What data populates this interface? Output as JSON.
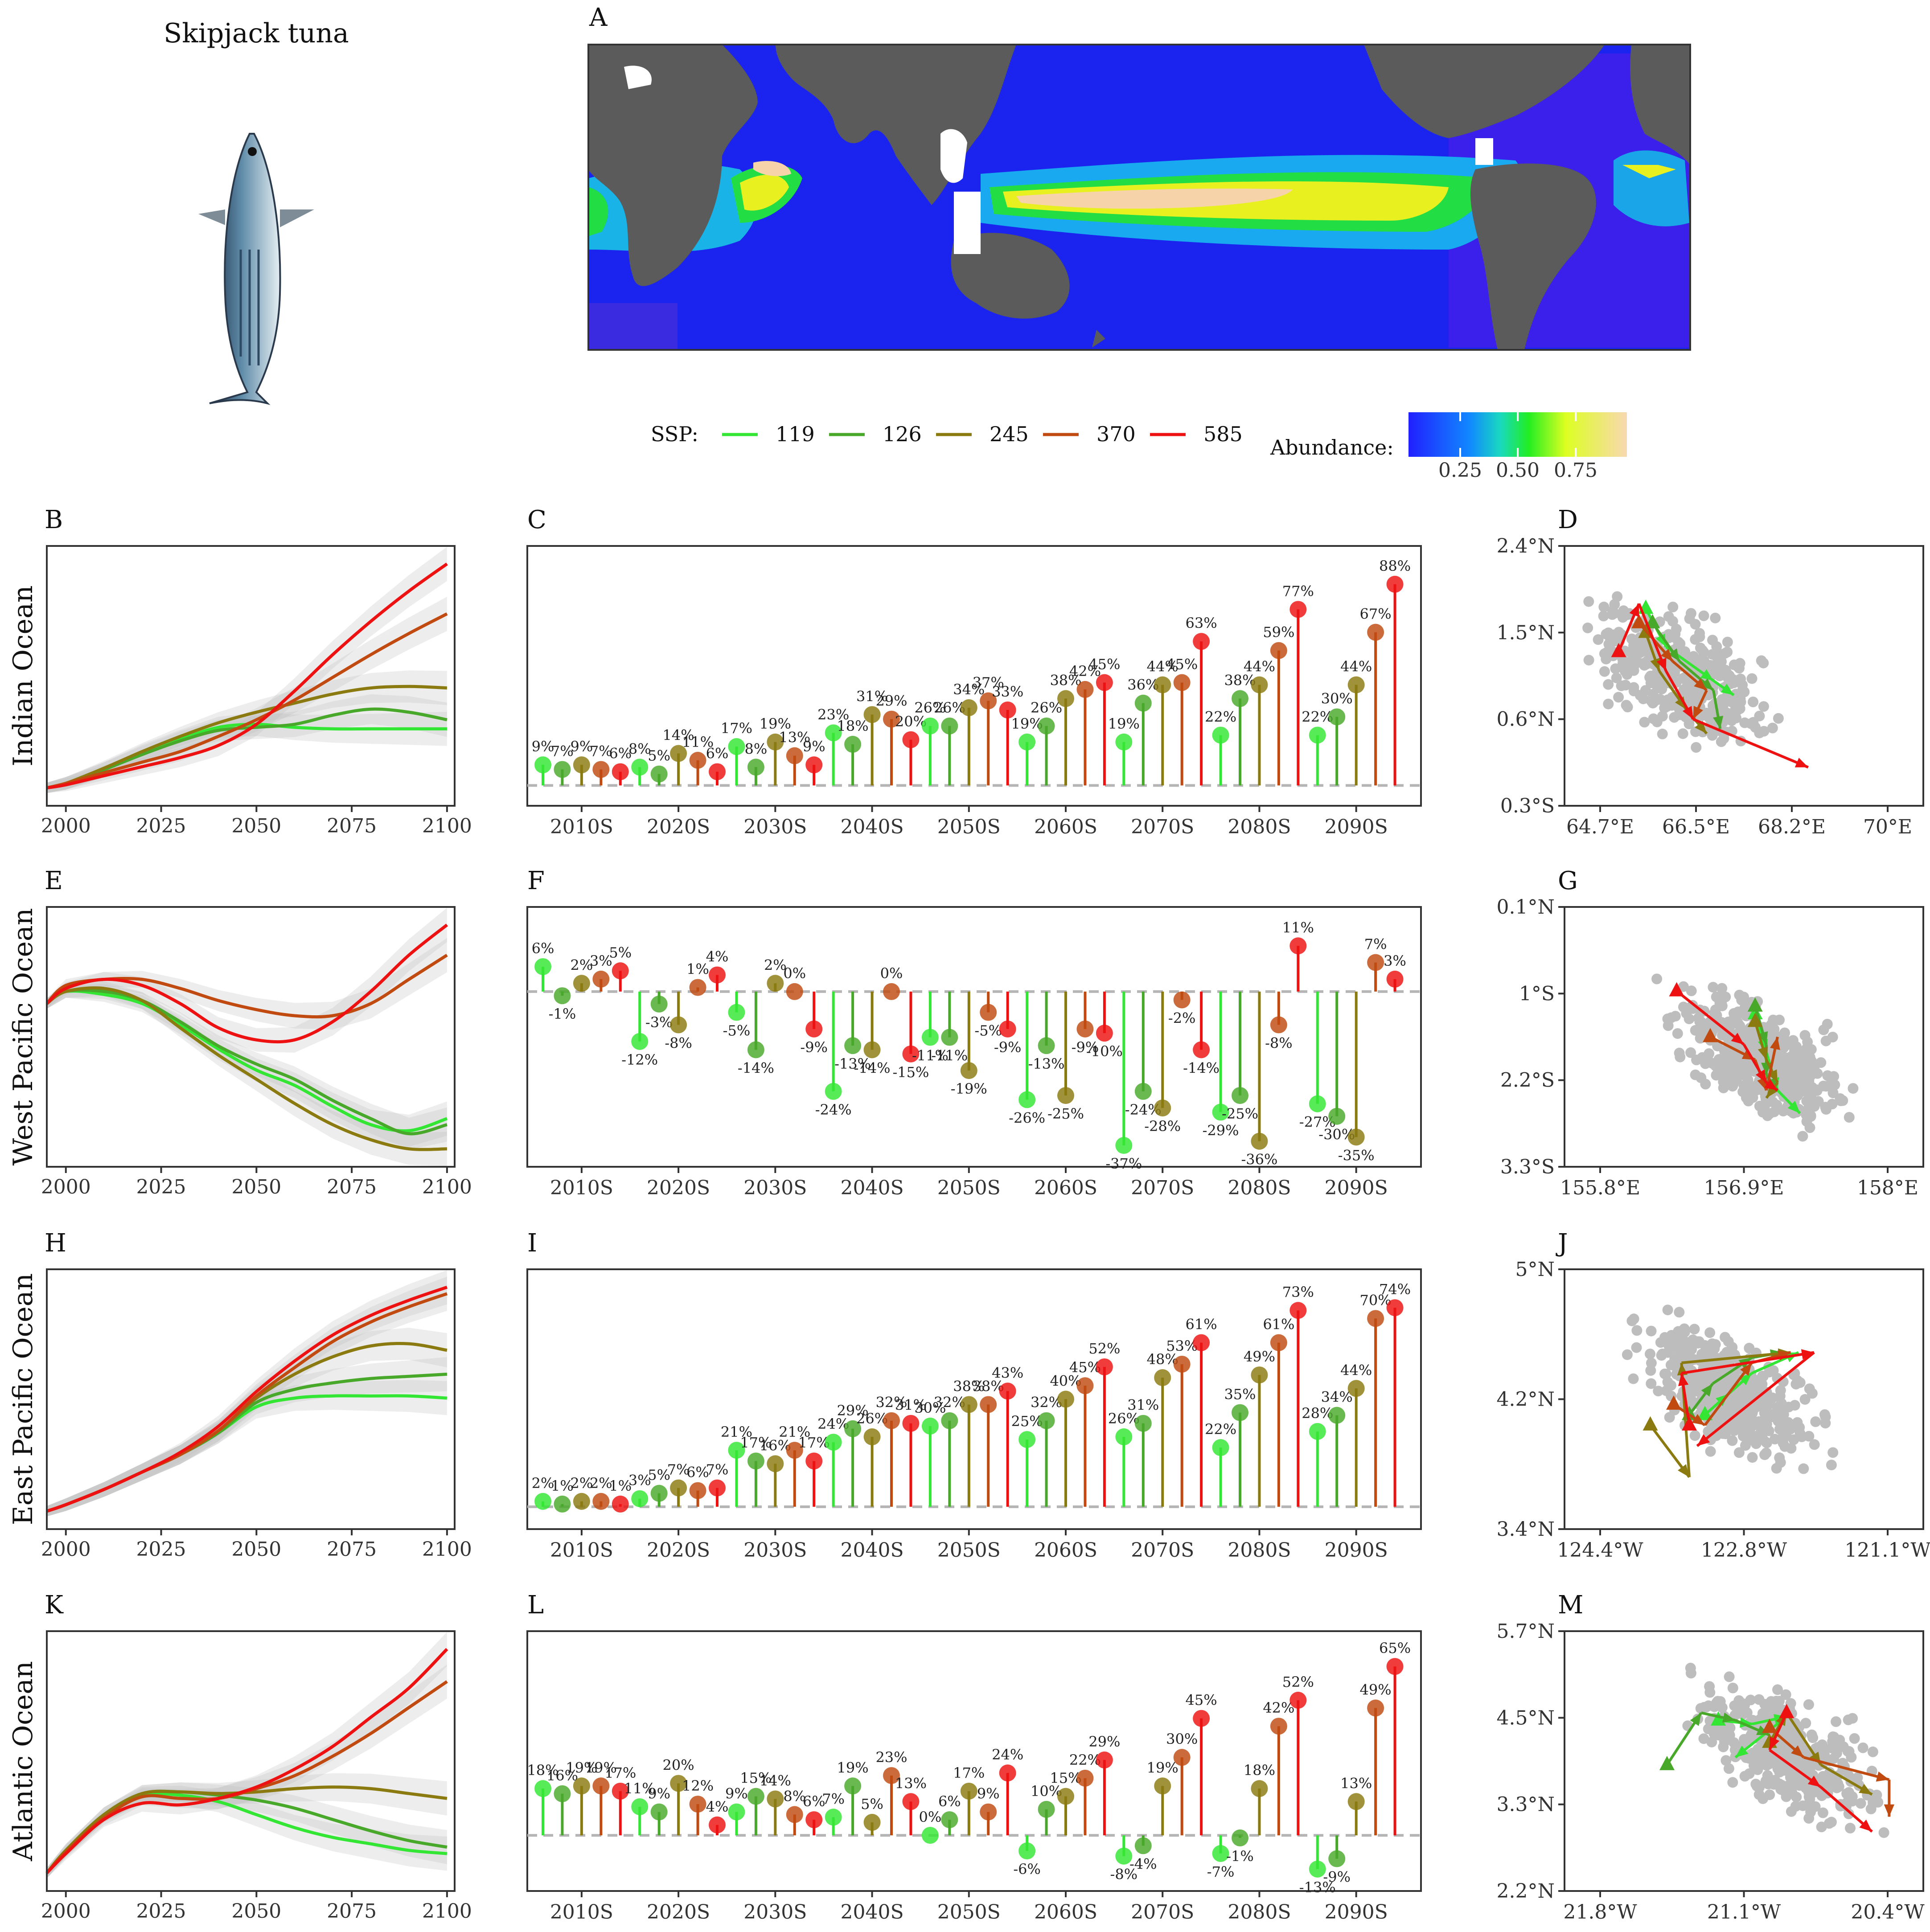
{
  "title": "Skipjack tuna",
  "species_icon": "skipjack-tuna-fish-icon",
  "map": {
    "label": "A",
    "colorbar_title": "Abundance:",
    "colorbar_ticks": [
      "0.25",
      "0.50",
      "0.75"
    ]
  },
  "legend": {
    "label": "SSP:",
    "items": [
      {
        "name": "119",
        "color": "#33e633"
      },
      {
        "name": "126",
        "color": "#48a82a"
      },
      {
        "name": "245",
        "color": "#8a7a10"
      },
      {
        "name": "370",
        "color": "#c04a10"
      },
      {
        "name": "585",
        "color": "#ee1111"
      }
    ]
  },
  "x_decade_labels": [
    "2010S",
    "2020S",
    "2030S",
    "2040S",
    "2050S",
    "2060S",
    "2070S",
    "2080S",
    "2090S"
  ],
  "chart_data": [
    {
      "type": "line",
      "panel": "B",
      "ocean": "Indian Ocean",
      "x": [
        1995,
        2000,
        2010,
        2020,
        2030,
        2040,
        2050,
        2060,
        2070,
        2080,
        2090,
        2100
      ],
      "x_ticks": [
        "2000",
        "2025",
        "2050",
        "2075",
        "2100"
      ],
      "series": [
        {
          "name": "119",
          "values": [
            0.1,
            0.13,
            0.22,
            0.33,
            0.42,
            0.5,
            0.52,
            0.5,
            0.49,
            0.49,
            0.49,
            0.49
          ]
        },
        {
          "name": "126",
          "values": [
            0.1,
            0.13,
            0.22,
            0.32,
            0.41,
            0.48,
            0.5,
            0.52,
            0.58,
            0.62,
            0.6,
            0.55
          ]
        },
        {
          "name": "245",
          "values": [
            0.1,
            0.13,
            0.23,
            0.34,
            0.44,
            0.53,
            0.6,
            0.66,
            0.72,
            0.76,
            0.77,
            0.76
          ]
        },
        {
          "name": "370",
          "values": [
            0.1,
            0.13,
            0.2,
            0.27,
            0.34,
            0.44,
            0.55,
            0.68,
            0.83,
            0.98,
            1.12,
            1.25
          ]
        },
        {
          "name": "585",
          "values": [
            0.1,
            0.12,
            0.18,
            0.24,
            0.3,
            0.38,
            0.52,
            0.74,
            0.98,
            1.2,
            1.4,
            1.58
          ]
        }
      ]
    },
    {
      "type": "lollipop",
      "panel": "C",
      "ylim": [
        -5,
        95
      ],
      "values": [
        9,
        7,
        9,
        7,
        6,
        8,
        5,
        14,
        11,
        6,
        17,
        8,
        19,
        13,
        9,
        23,
        18,
        31,
        29,
        20,
        26,
        26,
        34,
        37,
        33,
        19,
        26,
        38,
        42,
        45,
        19,
        36,
        44,
        45,
        63,
        22,
        38,
        44,
        59,
        77,
        22,
        30,
        44,
        67,
        88
      ]
    },
    {
      "type": "scatter",
      "panel": "D",
      "xlabels": [
        "64.7°E",
        "66.5°E",
        "68.2°E",
        "70°E"
      ],
      "ylabels": [
        "2.4°N",
        "1.5°N",
        "0.6°N",
        "0.3°S"
      ],
      "xlim": [
        64.7,
        70.0
      ],
      "ylim": [
        -0.3,
        2.4
      ],
      "centroids": [
        {
          "name": "119",
          "path": [
            [
              65.9,
              1.75
            ],
            [
              66.2,
              1.35
            ],
            [
              66.9,
              1.0
            ],
            [
              67.2,
              0.85
            ]
          ]
        },
        {
          "name": "126",
          "path": [
            [
              66.0,
              1.6
            ],
            [
              66.4,
              1.2
            ],
            [
              66.9,
              0.9
            ],
            [
              67.0,
              0.5
            ]
          ]
        },
        {
          "name": "245",
          "path": [
            [
              65.9,
              1.5
            ],
            [
              66.1,
              1.1
            ],
            [
              66.5,
              0.7
            ],
            [
              66.8,
              0.45
            ]
          ]
        },
        {
          "name": "370",
          "path": [
            [
              65.8,
              1.6
            ],
            [
              66.3,
              1.2
            ],
            [
              66.8,
              0.9
            ],
            [
              66.6,
              0.6
            ]
          ]
        },
        {
          "name": "585",
          "path": [
            [
              65.5,
              1.3
            ],
            [
              65.8,
              1.8
            ],
            [
              66.2,
              1.1
            ],
            [
              66.6,
              0.6
            ],
            [
              68.3,
              0.1
            ]
          ]
        }
      ]
    },
    {
      "type": "line",
      "panel": "E",
      "ocean": "West Pacific Ocean",
      "x": [
        1995,
        2000,
        2010,
        2020,
        2030,
        2040,
        2050,
        2060,
        2070,
        2080,
        2090,
        2100
      ],
      "x_ticks": [
        "2000",
        "2025",
        "2050",
        "2075",
        "2100"
      ],
      "series": [
        {
          "name": "119",
          "values": [
            0.02,
            0.06,
            0.05,
            0.02,
            -0.05,
            -0.13,
            -0.2,
            -0.25,
            -0.32,
            -0.38,
            -0.4,
            -0.36
          ]
        },
        {
          "name": "126",
          "values": [
            0.02,
            0.06,
            0.06,
            0.03,
            -0.04,
            -0.12,
            -0.18,
            -0.23,
            -0.3,
            -0.36,
            -0.41,
            -0.38
          ]
        },
        {
          "name": "245",
          "values": [
            0.02,
            0.06,
            0.07,
            0.03,
            -0.06,
            -0.15,
            -0.23,
            -0.31,
            -0.38,
            -0.43,
            -0.46,
            -0.46
          ]
        },
        {
          "name": "370",
          "values": [
            0.02,
            0.08,
            0.1,
            0.1,
            0.07,
            0.03,
            0.0,
            -0.02,
            -0.02,
            0.02,
            0.1,
            0.18
          ]
        },
        {
          "name": "585",
          "values": [
            0.02,
            0.07,
            0.1,
            0.08,
            0.02,
            -0.06,
            -0.1,
            -0.1,
            -0.04,
            0.06,
            0.18,
            0.28
          ]
        }
      ]
    },
    {
      "type": "lollipop",
      "panel": "F",
      "ylim": [
        -40,
        15
      ],
      "values": [
        6,
        -1,
        2,
        3,
        5,
        -12,
        -3,
        -8,
        1,
        4,
        -5,
        -14,
        2,
        0,
        -9,
        -24,
        -13,
        -14,
        0,
        -15,
        -11,
        -11,
        -19,
        -5,
        -9,
        -26,
        -13,
        -25,
        -9,
        -10,
        -37,
        -24,
        -28,
        -2,
        -14,
        -29,
        -25,
        -36,
        -8,
        11,
        -27,
        -30,
        -35,
        7,
        3
      ]
    },
    {
      "type": "scatter",
      "panel": "G",
      "xlabels": [
        "155.8°E",
        "156.9°E",
        "158°E"
      ],
      "ylabels": [
        "0.1°N",
        "1°S",
        "2.2°S",
        "3.3°S"
      ],
      "xlim": [
        155.8,
        159.0
      ],
      "ylim": [
        -3.3,
        0.1
      ],
      "centroids": [
        {
          "name": "119",
          "path": [
            [
              157.5,
              -1.3
            ],
            [
              157.6,
              -1.8
            ],
            [
              157.7,
              -2.3
            ],
            [
              157.9,
              -2.6
            ]
          ]
        },
        {
          "name": "126",
          "path": [
            [
              157.5,
              -1.2
            ],
            [
              157.6,
              -1.7
            ],
            [
              157.6,
              -2.1
            ],
            [
              157.7,
              -2.3
            ]
          ]
        },
        {
          "name": "245",
          "path": [
            [
              157.5,
              -1.4
            ],
            [
              157.6,
              -1.9
            ],
            [
              157.7,
              -2.2
            ],
            [
              157.6,
              -2.4
            ]
          ]
        },
        {
          "name": "370",
          "path": [
            [
              157.1,
              -1.6
            ],
            [
              157.5,
              -1.9
            ],
            [
              157.6,
              -2.3
            ],
            [
              157.7,
              -1.6
            ]
          ]
        },
        {
          "name": "585",
          "path": [
            [
              156.8,
              -1.0
            ],
            [
              157.4,
              -1.7
            ],
            [
              157.6,
              -2.2
            ],
            [
              157.7,
              -2.3
            ]
          ]
        }
      ]
    },
    {
      "type": "line",
      "panel": "H",
      "ocean": "East Pacific Ocean",
      "x": [
        1995,
        2000,
        2010,
        2020,
        2030,
        2040,
        2050,
        2060,
        2070,
        2080,
        2090,
        2100
      ],
      "x_ticks": [
        "2000",
        "2025",
        "2050",
        "2075",
        "2100"
      ],
      "series": [
        {
          "name": "119",
          "values": [
            0.02,
            0.05,
            0.12,
            0.2,
            0.28,
            0.38,
            0.5,
            0.54,
            0.55,
            0.55,
            0.55,
            0.54
          ]
        },
        {
          "name": "126",
          "values": [
            0.02,
            0.05,
            0.12,
            0.2,
            0.28,
            0.38,
            0.52,
            0.58,
            0.61,
            0.63,
            0.64,
            0.65
          ]
        },
        {
          "name": "245",
          "values": [
            0.02,
            0.05,
            0.12,
            0.2,
            0.28,
            0.39,
            0.54,
            0.65,
            0.73,
            0.78,
            0.79,
            0.76
          ]
        },
        {
          "name": "370",
          "values": [
            0.02,
            0.05,
            0.12,
            0.2,
            0.28,
            0.39,
            0.55,
            0.68,
            0.8,
            0.89,
            0.96,
            1.02
          ]
        },
        {
          "name": "585",
          "values": [
            0.02,
            0.05,
            0.12,
            0.2,
            0.29,
            0.41,
            0.57,
            0.71,
            0.83,
            0.92,
            0.99,
            1.05
          ]
        }
      ]
    },
    {
      "type": "lollipop",
      "panel": "I",
      "ylim": [
        -5,
        80
      ],
      "values": [
        2,
        1,
        2,
        2,
        1,
        3,
        5,
        7,
        6,
        7,
        21,
        17,
        16,
        21,
        17,
        24,
        29,
        26,
        32,
        31,
        30,
        32,
        38,
        38,
        43,
        25,
        32,
        40,
        45,
        52,
        26,
        31,
        48,
        53,
        61,
        22,
        35,
        49,
        61,
        73,
        28,
        34,
        44,
        70,
        74
      ]
    },
    {
      "type": "scatter",
      "panel": "J",
      "xlabels": [
        "124.4°W",
        "122.8°W",
        "121.1°W"
      ],
      "ylabels": [
        "5°N",
        "4.2°N",
        "3.4°N"
      ],
      "xlim": [
        -124.4,
        -119.8
      ],
      "ylim": [
        2.5,
        5.0
      ],
      "centroids": [
        {
          "name": "119",
          "path": [
            [
              -122.6,
              3.6
            ],
            [
              -122.3,
              3.8
            ],
            [
              -122.0,
              4.0
            ],
            [
              -121.4,
              4.2
            ]
          ]
        },
        {
          "name": "126",
          "path": [
            [
              -122.8,
              3.6
            ],
            [
              -122.5,
              3.9
            ],
            [
              -122.0,
              4.15
            ],
            [
              -121.6,
              4.2
            ]
          ]
        },
        {
          "name": "245",
          "path": [
            [
              -123.3,
              3.5
            ],
            [
              -122.8,
              3.0
            ],
            [
              -122.9,
              4.1
            ],
            [
              -121.5,
              4.2
            ]
          ]
        },
        {
          "name": "370",
          "path": [
            [
              -123.0,
              3.7
            ],
            [
              -122.6,
              3.5
            ],
            [
              -122.0,
              4.1
            ],
            [
              -121.5,
              4.2
            ]
          ]
        },
        {
          "name": "585",
          "path": [
            [
              -122.8,
              3.5
            ],
            [
              -122.9,
              4.0
            ],
            [
              -121.2,
              4.2
            ],
            [
              -122.7,
              3.3
            ]
          ]
        }
      ]
    },
    {
      "type": "line",
      "panel": "K",
      "ocean": "Atlantic Ocean",
      "x": [
        1995,
        2000,
        2010,
        2020,
        2030,
        2040,
        2050,
        2060,
        2070,
        2080,
        2090,
        2100
      ],
      "x_ticks": [
        "2000",
        "2025",
        "2050",
        "2075",
        "2100"
      ],
      "series": [
        {
          "name": "119",
          "values": [
            0.0,
            0.14,
            0.36,
            0.48,
            0.48,
            0.44,
            0.36,
            0.28,
            0.22,
            0.18,
            0.14,
            0.12
          ]
        },
        {
          "name": "126",
          "values": [
            0.0,
            0.14,
            0.36,
            0.49,
            0.5,
            0.48,
            0.45,
            0.4,
            0.33,
            0.26,
            0.2,
            0.16
          ]
        },
        {
          "name": "245",
          "values": [
            0.0,
            0.14,
            0.36,
            0.49,
            0.5,
            0.49,
            0.5,
            0.52,
            0.53,
            0.52,
            0.49,
            0.46
          ]
        },
        {
          "name": "370",
          "values": [
            0.0,
            0.13,
            0.34,
            0.47,
            0.46,
            0.46,
            0.52,
            0.6,
            0.72,
            0.86,
            1.02,
            1.18
          ]
        },
        {
          "name": "585",
          "values": [
            0.0,
            0.12,
            0.33,
            0.43,
            0.42,
            0.46,
            0.53,
            0.64,
            0.78,
            0.96,
            1.14,
            1.38
          ]
        }
      ]
    },
    {
      "type": "lollipop",
      "panel": "L",
      "ylim": [
        -18,
        70
      ],
      "values": [
        18,
        16,
        19,
        19,
        17,
        11,
        9,
        20,
        12,
        4,
        9,
        15,
        14,
        8,
        6,
        7,
        19,
        5,
        23,
        13,
        0,
        6,
        17,
        9,
        24,
        -6,
        10,
        15,
        22,
        29,
        -8,
        -4,
        19,
        30,
        45,
        -7,
        -1,
        18,
        42,
        52,
        -13,
        -9,
        13,
        49,
        65
      ]
    },
    {
      "type": "scatter",
      "panel": "M",
      "xlabels": [
        "21.8°W",
        "21.1°W",
        "20.4°W"
      ],
      "ylabels": [
        "5.7°N",
        "4.5°N",
        "3.3°N",
        "2.2°N"
      ],
      "xlim": [
        -21.8,
        -19.7
      ],
      "ylim": [
        2.2,
        5.7
      ],
      "centroids": [
        {
          "name": "119",
          "path": [
            [
              -20.9,
              4.5
            ],
            [
              -20.7,
              4.45
            ],
            [
              -20.5,
              4.55
            ],
            [
              -20.8,
              4.0
            ]
          ]
        },
        {
          "name": "126",
          "path": [
            [
              -21.2,
              3.9
            ],
            [
              -21.0,
              4.6
            ],
            [
              -20.8,
              4.5
            ],
            [
              -20.6,
              4.3
            ]
          ]
        },
        {
          "name": "245",
          "path": [
            [
              -20.6,
              4.2
            ],
            [
              -20.5,
              4.6
            ],
            [
              -20.3,
              3.9
            ],
            [
              -20.0,
              3.5
            ]
          ]
        },
        {
          "name": "370",
          "path": [
            [
              -20.6,
              4.4
            ],
            [
              -20.4,
              4.0
            ],
            [
              -19.9,
              3.7
            ],
            [
              -19.9,
              3.2
            ]
          ]
        },
        {
          "name": "585",
          "path": [
            [
              -20.5,
              4.6
            ],
            [
              -20.6,
              4.1
            ],
            [
              -20.3,
              3.6
            ],
            [
              -20.0,
              3.0
            ]
          ]
        }
      ]
    }
  ]
}
